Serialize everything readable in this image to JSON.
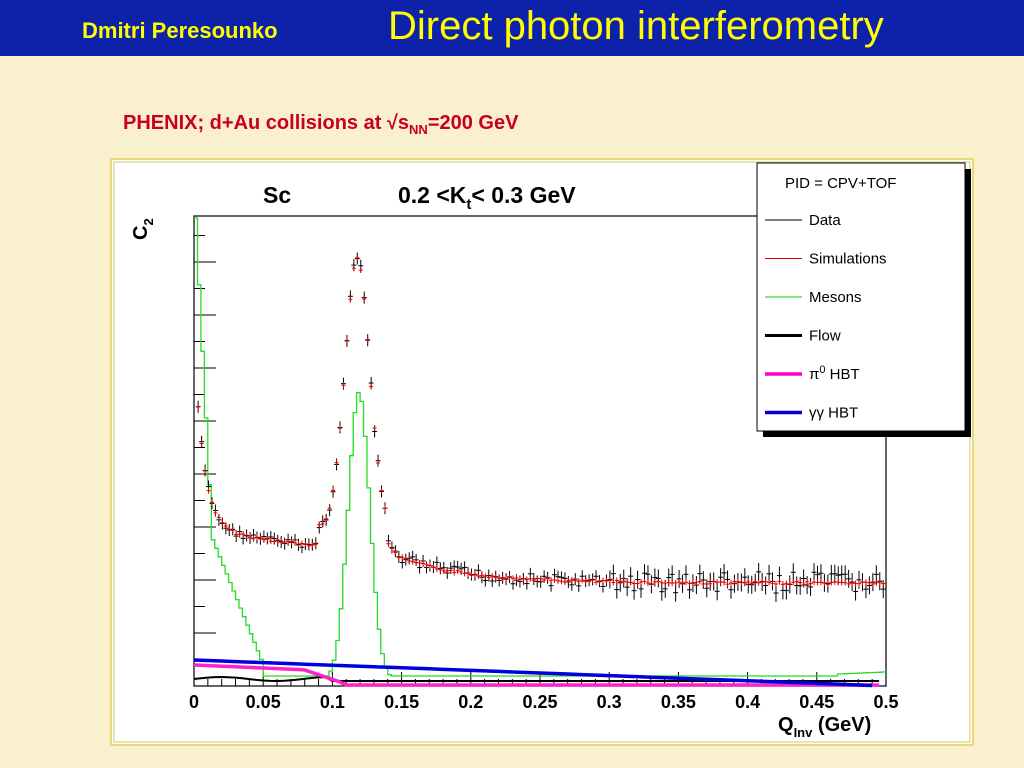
{
  "header": {
    "author": "Dmitri Peresounko",
    "title": "Direct photon interferometry"
  },
  "subtitle": {
    "main": "PHENIX; d+Au collisions at √s",
    "sub": "NN",
    "tail": "=200 GeV"
  },
  "chart_data": {
    "type": "scatter",
    "title_left": "Sc",
    "title_right_main": "0.2 <K",
    "title_right_sub": "t",
    "title_right_tail": "< 0.3 GeV",
    "ylabel_main": "C",
    "ylabel_sub": "2",
    "xlabel_main": "Q",
    "xlabel_sub": "Inv",
    "xlabel_tail": " (GeV)",
    "xlim": [
      0,
      0.5
    ],
    "ticks": [
      "0",
      "0.05",
      "0.1",
      "0.15",
      "0.2",
      "0.25",
      "0.3",
      "0.35",
      "0.4",
      "0.45",
      "0.5"
    ],
    "legend": {
      "header": "PID = CPV+TOF",
      "placement": "top-right",
      "entries": [
        {
          "label": "Data",
          "color": "#000000"
        },
        {
          "label": "Simulations",
          "color": "#e00000"
        },
        {
          "label": "Mesons",
          "color": "#00cc00"
        },
        {
          "label": "Flow",
          "color": "#000000"
        },
        {
          "label_main": "π",
          "label_sup": "0",
          "label_tail": " HBT",
          "color": "#ff00cc"
        },
        {
          "label": "γγ HBT",
          "color": "#0000dd"
        }
      ]
    }
  }
}
